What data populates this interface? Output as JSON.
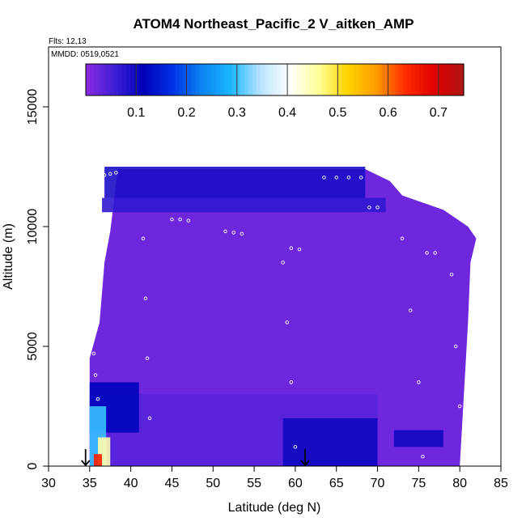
{
  "chart_data": {
    "type": "heatmap",
    "title": "ATOM4 Northeast_Pacific_2 V_aitken_AMP",
    "annotations": [
      "Flts: 12,13",
      "MMDD: 0519,0521"
    ],
    "xlabel": "Latitude (deg N)",
    "ylabel": "Altitude (m)",
    "xlim": [
      30,
      85
    ],
    "ylim": [
      0,
      17500
    ],
    "x_ticks": [
      "30",
      "35",
      "40",
      "45",
      "50",
      "55",
      "60",
      "65",
      "70",
      "75",
      "80",
      "85"
    ],
    "y_ticks": [
      "0",
      "5000",
      "10000",
      "15000"
    ],
    "colorbar": {
      "range": [
        0,
        0.75
      ],
      "tick_values": [
        0.1,
        0.2,
        0.3,
        0.4,
        0.5,
        0.6,
        0.7
      ],
      "tick_labels": [
        "0.1",
        "0.2",
        "0.3",
        "0.4",
        "0.5",
        "0.6",
        "0.7"
      ],
      "colors": [
        "#8a2be2",
        "#3d1fd6",
        "#0000b8",
        "#0033e6",
        "#0b84f0",
        "#1cb8ff",
        "#b8e4ff",
        "#ffffff",
        "#ffff9a",
        "#ffd500",
        "#ff9a00",
        "#ff2a00",
        "#e00000",
        "#b01515"
      ]
    },
    "regions": [
      {
        "lat": [
          36.8,
          68.5
        ],
        "alt": [
          11200,
          12500
        ],
        "value": 0.09
      },
      {
        "lat": [
          36.5,
          71.0
        ],
        "alt": [
          10600,
          11200
        ],
        "value": 0.07
      },
      {
        "lat": [
          35.0,
          70.0
        ],
        "alt": [
          0,
          3000
        ],
        "value": 0.04
      },
      {
        "lat": [
          58.5,
          70.0
        ],
        "alt": [
          0,
          2000
        ],
        "value": 0.1
      },
      {
        "lat": [
          35.0,
          41.0
        ],
        "alt": [
          1400,
          3500
        ],
        "value": 0.12
      },
      {
        "lat": [
          35.0,
          37.0
        ],
        "alt": [
          0,
          2500
        ],
        "value": 0.3
      },
      {
        "lat": [
          36.0,
          37.5
        ],
        "alt": [
          0,
          1200
        ],
        "value": 0.45
      },
      {
        "lat": [
          35.5,
          36.5
        ],
        "alt": [
          0,
          500
        ],
        "value": 0.65
      },
      {
        "lat": [
          72.0,
          78.0
        ],
        "alt": [
          800,
          1500
        ],
        "value": 0.1
      }
    ],
    "flight_track_markers": [
      {
        "lat": 36.8,
        "alt": 12150
      },
      {
        "lat": 37.5,
        "alt": 12200
      },
      {
        "lat": 38.2,
        "alt": 12250
      },
      {
        "lat": 45.0,
        "alt": 10300
      },
      {
        "lat": 46.0,
        "alt": 10300
      },
      {
        "lat": 47.0,
        "alt": 10250
      },
      {
        "lat": 51.5,
        "alt": 9800
      },
      {
        "lat": 52.5,
        "alt": 9750
      },
      {
        "lat": 53.5,
        "alt": 9700
      },
      {
        "lat": 59.5,
        "alt": 9100
      },
      {
        "lat": 60.5,
        "alt": 9050
      },
      {
        "lat": 63.5,
        "alt": 12050
      },
      {
        "lat": 65.0,
        "alt": 12050
      },
      {
        "lat": 66.5,
        "alt": 12050
      },
      {
        "lat": 68.0,
        "alt": 12050
      },
      {
        "lat": 69.0,
        "alt": 10800
      },
      {
        "lat": 70.0,
        "alt": 10800
      },
      {
        "lat": 76.0,
        "alt": 8900
      },
      {
        "lat": 77.0,
        "alt": 8900
      },
      {
        "lat": 35.5,
        "alt": 4700
      },
      {
        "lat": 35.7,
        "alt": 3800
      },
      {
        "lat": 36.0,
        "alt": 2800
      },
      {
        "lat": 41.5,
        "alt": 9500
      },
      {
        "lat": 41.8,
        "alt": 7000
      },
      {
        "lat": 42.0,
        "alt": 4500
      },
      {
        "lat": 42.3,
        "alt": 2000
      },
      {
        "lat": 58.5,
        "alt": 8500
      },
      {
        "lat": 59.0,
        "alt": 6000
      },
      {
        "lat": 59.5,
        "alt": 3500
      },
      {
        "lat": 60.0,
        "alt": 800
      },
      {
        "lat": 73.0,
        "alt": 9500
      },
      {
        "lat": 74.0,
        "alt": 6500
      },
      {
        "lat": 75.0,
        "alt": 3500
      },
      {
        "lat": 75.5,
        "alt": 400
      },
      {
        "lat": 79.0,
        "alt": 8000
      },
      {
        "lat": 79.5,
        "alt": 5000
      },
      {
        "lat": 80.0,
        "alt": 2500
      }
    ],
    "arrows": [
      {
        "lat": 34.5,
        "alt": 0
      },
      {
        "lat": 61.2,
        "alt": 0
      }
    ]
  }
}
